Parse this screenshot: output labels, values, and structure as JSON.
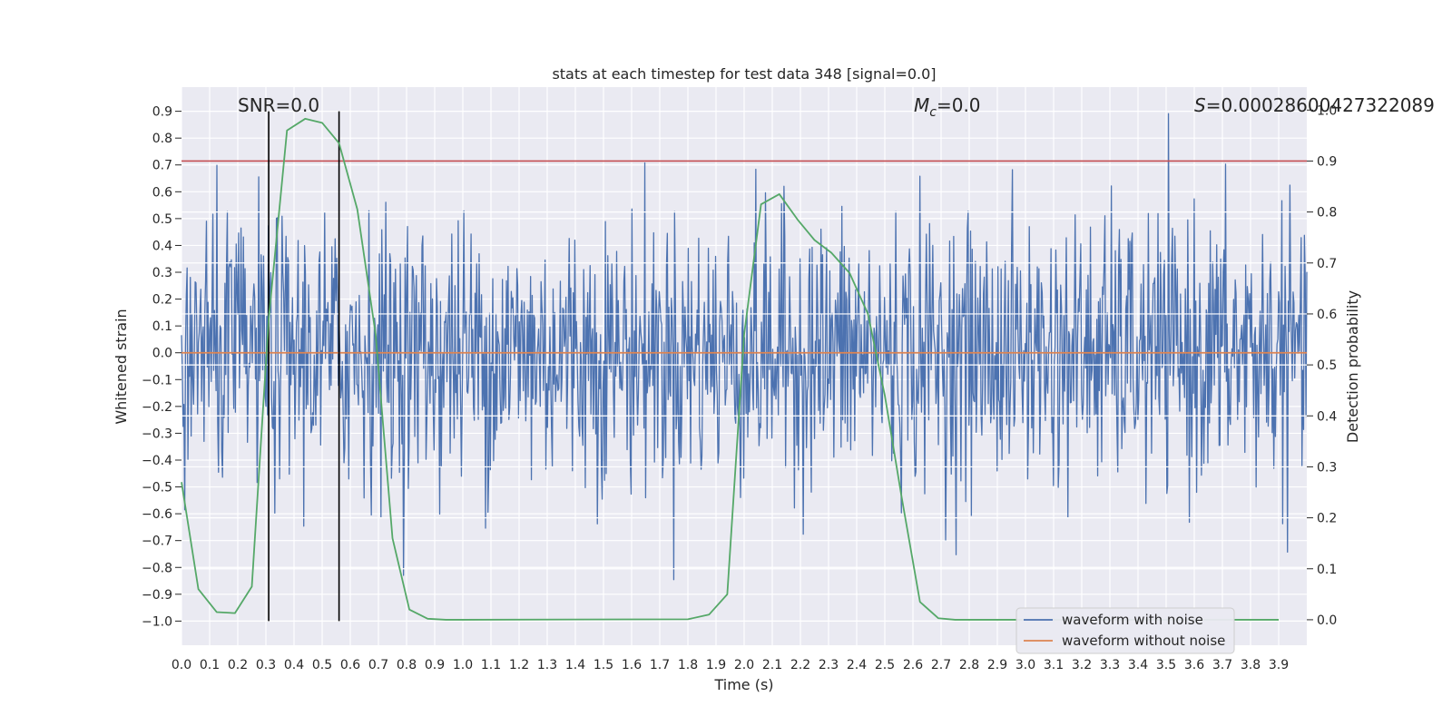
{
  "chart_data": {
    "type": "line",
    "title": "stats at each timestep for test data 348 [signal=0.0]",
    "xlabel": "Time (s)",
    "ylabel": "Whitened strain",
    "y2label": "Detection probability",
    "xlim": [
      0.0,
      4.0
    ],
    "ylim": [
      -1.09,
      0.99
    ],
    "y2lim": [
      -0.05,
      1.045
    ],
    "x_ticks": [
      0.0,
      0.1,
      0.2,
      0.3,
      0.4,
      0.5,
      0.6,
      0.7,
      0.8,
      0.9,
      1.0,
      1.1,
      1.2,
      1.3,
      1.4,
      1.5,
      1.6,
      1.7,
      1.8,
      1.9,
      2.0,
      2.1,
      2.2,
      2.3,
      2.4,
      2.5,
      2.6,
      2.7,
      2.8,
      2.9,
      3.0,
      3.1,
      3.2,
      3.3,
      3.4,
      3.5,
      3.6,
      3.7,
      3.8,
      3.9
    ],
    "x_tick_labels": [
      "0.0",
      "0.1",
      "0.2",
      "0.3",
      "0.4",
      "0.5",
      "0.6",
      "0.7",
      "0.8",
      "0.9",
      "1.0",
      "1.1",
      "1.2",
      "1.3",
      "1.4",
      "1.5",
      "1.6",
      "1.7",
      "1.8",
      "1.9",
      "2.0",
      "2.1",
      "2.2",
      "2.3",
      "2.4",
      "2.5",
      "2.6",
      "2.7",
      "2.8",
      "2.9",
      "3.0",
      "3.1",
      "3.2",
      "3.3",
      "3.4",
      "3.5",
      "3.6",
      "3.7",
      "3.8",
      "3.9"
    ],
    "y_ticks": [
      0.9,
      0.8,
      0.7,
      0.6,
      0.5,
      0.4,
      0.3,
      0.2,
      0.1,
      0.0,
      -0.1,
      -0.2,
      -0.3,
      -0.4,
      -0.5,
      -0.6,
      -0.7,
      -0.8,
      -0.9,
      -1.0
    ],
    "y_tick_labels": [
      "0.9",
      "0.8",
      "0.7",
      "0.6",
      "0.5",
      "0.4",
      "0.3",
      "0.2",
      "0.1",
      "0.0",
      "−0.1",
      "−0.2",
      "−0.3",
      "−0.4",
      "−0.5",
      "−0.6",
      "−0.7",
      "−0.8",
      "−0.9",
      "−1.0"
    ],
    "y2_ticks": [
      1.0,
      0.9,
      0.8,
      0.7,
      0.6,
      0.5,
      0.4,
      0.3,
      0.2,
      0.1,
      0.0
    ],
    "y2_tick_labels": [
      "1.0",
      "0.9",
      "0.8",
      "0.7",
      "0.6",
      "0.5",
      "0.4",
      "0.3",
      "0.2",
      "0.1",
      "0.0"
    ],
    "annotations": {
      "snr": "SNR=0.0",
      "mc": "=0.0",
      "mc_symbol": "M",
      "mc_subscript": "c",
      "s": "=0.00028600427322089",
      "s_symbol": "S"
    },
    "series": [
      {
        "name": "waveform with noise",
        "color": "#4c72b0",
        "generator": "noise",
        "n_points": 1400,
        "sigma": 0.25,
        "seed": 348
      },
      {
        "name": "waveform without noise",
        "color": "#dd8452",
        "x": [
          0.0,
          4.0
        ],
        "y": [
          0.0,
          0.0
        ]
      },
      {
        "name": "detection probability",
        "color": "#55a868",
        "axis": "right",
        "x": [
          0.0,
          0.06,
          0.125,
          0.19,
          0.25,
          0.31,
          0.375,
          0.44,
          0.5,
          0.56,
          0.625,
          0.69,
          0.75,
          0.81,
          0.875,
          0.94,
          1.0,
          1.8,
          1.875,
          1.94,
          2.0,
          2.06,
          2.125,
          2.19,
          2.25,
          2.31,
          2.375,
          2.44,
          2.5,
          2.56,
          2.625,
          2.69,
          2.75,
          3.9
        ],
        "y": [
          0.27,
          0.06,
          0.015,
          0.013,
          0.065,
          0.59,
          0.96,
          0.983,
          0.975,
          0.935,
          0.805,
          0.56,
          0.16,
          0.02,
          0.002,
          0.0,
          0.0,
          0.001,
          0.01,
          0.05,
          0.56,
          0.815,
          0.835,
          0.785,
          0.745,
          0.72,
          0.68,
          0.6,
          0.44,
          0.24,
          0.035,
          0.003,
          0.0,
          0.0
        ]
      }
    ],
    "threshold": {
      "y2": 0.9,
      "color": "#c44e52"
    },
    "vlines": {
      "x": [
        0.31,
        0.56
      ],
      "y_range": [
        -1.0,
        0.9
      ],
      "color": "#000000"
    },
    "legend": {
      "position": "bottom-right",
      "entries": [
        "waveform with noise",
        "waveform without noise"
      ]
    },
    "grid": true,
    "background": "#eaeaf2"
  }
}
